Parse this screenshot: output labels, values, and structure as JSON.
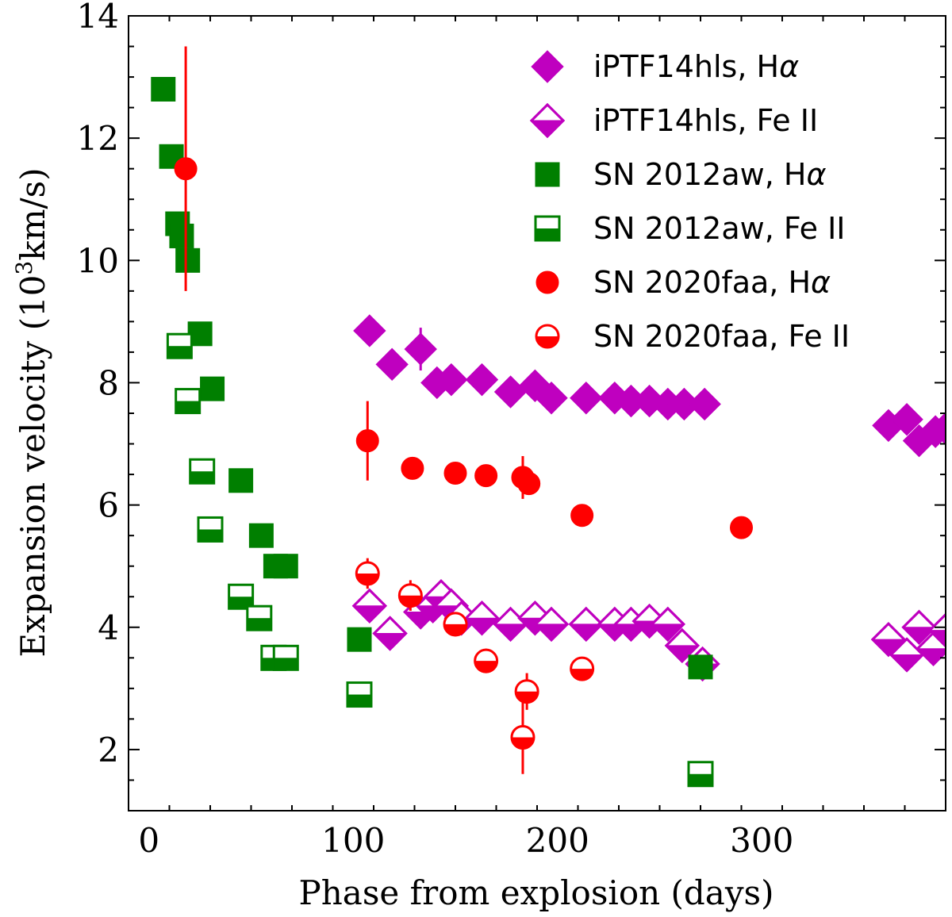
{
  "chart_data": {
    "type": "scatter",
    "title": "",
    "xlabel": "Phase from explosion (days)",
    "ylabel_main": "Expansion velocity (10",
    "ylabel_sup": "3",
    "ylabel_unit": "km/s)",
    "xlim": [
      -10,
      390
    ],
    "ylim": [
      1,
      14
    ],
    "xticks": [
      0,
      100,
      200,
      300
    ],
    "yticks": [
      2,
      4,
      6,
      8,
      10,
      12,
      14
    ],
    "xtick_labels": [
      "0",
      "100",
      "200",
      "300"
    ],
    "ytick_labels": [
      "2",
      "4",
      "6",
      "8",
      "10",
      "12",
      "14"
    ],
    "legend_position": "top-right",
    "series": [
      {
        "name": "iPTF14hls, Hα",
        "legend_parts": [
          "iPTF14hls, H",
          "α"
        ],
        "color": "#bf00bf",
        "marker": "diamond",
        "fill": "full",
        "points": [
          {
            "x": 108,
            "y": 8.85
          },
          {
            "x": 119,
            "y": 8.3,
            "err": 0.2
          },
          {
            "x": 133,
            "y": 8.55,
            "err": 0.35
          },
          {
            "x": 141,
            "y": 8.0
          },
          {
            "x": 148,
            "y": 8.05
          },
          {
            "x": 163,
            "y": 8.05
          },
          {
            "x": 177,
            "y": 7.85
          },
          {
            "x": 189,
            "y": 7.95
          },
          {
            "x": 197,
            "y": 7.75
          },
          {
            "x": 214,
            "y": 7.75
          },
          {
            "x": 228,
            "y": 7.75
          },
          {
            "x": 236,
            "y": 7.7
          },
          {
            "x": 245,
            "y": 7.7
          },
          {
            "x": 254,
            "y": 7.65
          },
          {
            "x": 262,
            "y": 7.65
          },
          {
            "x": 272,
            "y": 7.65
          },
          {
            "x": 362,
            "y": 7.3
          },
          {
            "x": 371,
            "y": 7.4
          },
          {
            "x": 377,
            "y": 7.05
          },
          {
            "x": 385,
            "y": 7.2
          },
          {
            "x": 390,
            "y": 7.25
          }
        ]
      },
      {
        "name": "iPTF14hls, Fe II",
        "legend_parts": [
          "iPTF14hls, Fe II",
          ""
        ],
        "color": "#bf00bf",
        "marker": "diamond",
        "fill": "bottom",
        "points": [
          {
            "x": 108,
            "y": 4.35
          },
          {
            "x": 118,
            "y": 3.9
          },
          {
            "x": 133,
            "y": 4.25
          },
          {
            "x": 139,
            "y": 4.35
          },
          {
            "x": 143,
            "y": 4.5
          },
          {
            "x": 148,
            "y": 4.35
          },
          {
            "x": 153,
            "y": 4.15
          },
          {
            "x": 163,
            "y": 4.15
          },
          {
            "x": 177,
            "y": 4.05
          },
          {
            "x": 189,
            "y": 4.15
          },
          {
            "x": 197,
            "y": 4.05
          },
          {
            "x": 214,
            "y": 4.05
          },
          {
            "x": 228,
            "y": 4.05
          },
          {
            "x": 236,
            "y": 4.05
          },
          {
            "x": 245,
            "y": 4.1
          },
          {
            "x": 254,
            "y": 4.05
          },
          {
            "x": 261,
            "y": 3.7
          },
          {
            "x": 271,
            "y": 3.4
          },
          {
            "x": 362,
            "y": 3.8
          },
          {
            "x": 371,
            "y": 3.55
          },
          {
            "x": 377,
            "y": 4.0
          },
          {
            "x": 384,
            "y": 3.65
          },
          {
            "x": 390,
            "y": 3.95
          }
        ]
      },
      {
        "name": "SN 2012aw, Hα",
        "legend_parts": [
          "SN 2012aw, H",
          "α"
        ],
        "color": "#007f00",
        "marker": "square",
        "fill": "full",
        "points": [
          {
            "x": 7,
            "y": 12.8
          },
          {
            "x": 11,
            "y": 11.7
          },
          {
            "x": 14,
            "y": 10.6
          },
          {
            "x": 16,
            "y": 10.4
          },
          {
            "x": 19,
            "y": 10.0
          },
          {
            "x": 25,
            "y": 8.8
          },
          {
            "x": 31,
            "y": 7.9
          },
          {
            "x": 45,
            "y": 6.4
          },
          {
            "x": 55,
            "y": 5.5
          },
          {
            "x": 62,
            "y": 5.0
          },
          {
            "x": 67,
            "y": 5.0
          },
          {
            "x": 103,
            "y": 3.8
          },
          {
            "x": 270,
            "y": 3.35
          }
        ]
      },
      {
        "name": "SN 2012aw, Fe II",
        "legend_parts": [
          "SN 2012aw, Fe II",
          ""
        ],
        "color": "#007f00",
        "marker": "square",
        "fill": "bottom",
        "points": [
          {
            "x": 15,
            "y": 8.6
          },
          {
            "x": 19,
            "y": 7.7
          },
          {
            "x": 26,
            "y": 6.55
          },
          {
            "x": 30,
            "y": 5.6
          },
          {
            "x": 45,
            "y": 4.5
          },
          {
            "x": 54,
            "y": 4.15
          },
          {
            "x": 61,
            "y": 3.5
          },
          {
            "x": 67,
            "y": 3.5
          },
          {
            "x": 103,
            "y": 2.9
          },
          {
            "x": 270,
            "y": 1.6
          }
        ]
      },
      {
        "name": "SN 2020faa, Hα",
        "legend_parts": [
          "SN 2020faa, H",
          "α"
        ],
        "color": "#ff0000",
        "marker": "circle",
        "fill": "full",
        "points": [
          {
            "x": 18,
            "y": 11.5,
            "err": 2.0
          },
          {
            "x": 107,
            "y": 7.05,
            "err": 0.65
          },
          {
            "x": 129,
            "y": 6.6
          },
          {
            "x": 150,
            "y": 6.52
          },
          {
            "x": 165,
            "y": 6.48
          },
          {
            "x": 183,
            "y": 6.45,
            "err": 0.35
          },
          {
            "x": 186,
            "y": 6.35
          },
          {
            "x": 212,
            "y": 5.83
          },
          {
            "x": 290,
            "y": 5.63
          }
        ]
      },
      {
        "name": "SN 2020faa, Fe II",
        "legend_parts": [
          "SN 2020faa, Fe II",
          ""
        ],
        "color": "#ff0000",
        "marker": "circle",
        "fill": "bottom",
        "points": [
          {
            "x": 107,
            "y": 4.88,
            "err": 0.25
          },
          {
            "x": 128,
            "y": 4.52,
            "err": 0.25
          },
          {
            "x": 150,
            "y": 4.05,
            "err": 0.2
          },
          {
            "x": 165,
            "y": 3.45,
            "err": 0.2
          },
          {
            "x": 183,
            "y": 2.2,
            "err": 0.6
          },
          {
            "x": 185,
            "y": 2.95,
            "err": 0.3
          },
          {
            "x": 212,
            "y": 3.32
          }
        ]
      }
    ]
  }
}
